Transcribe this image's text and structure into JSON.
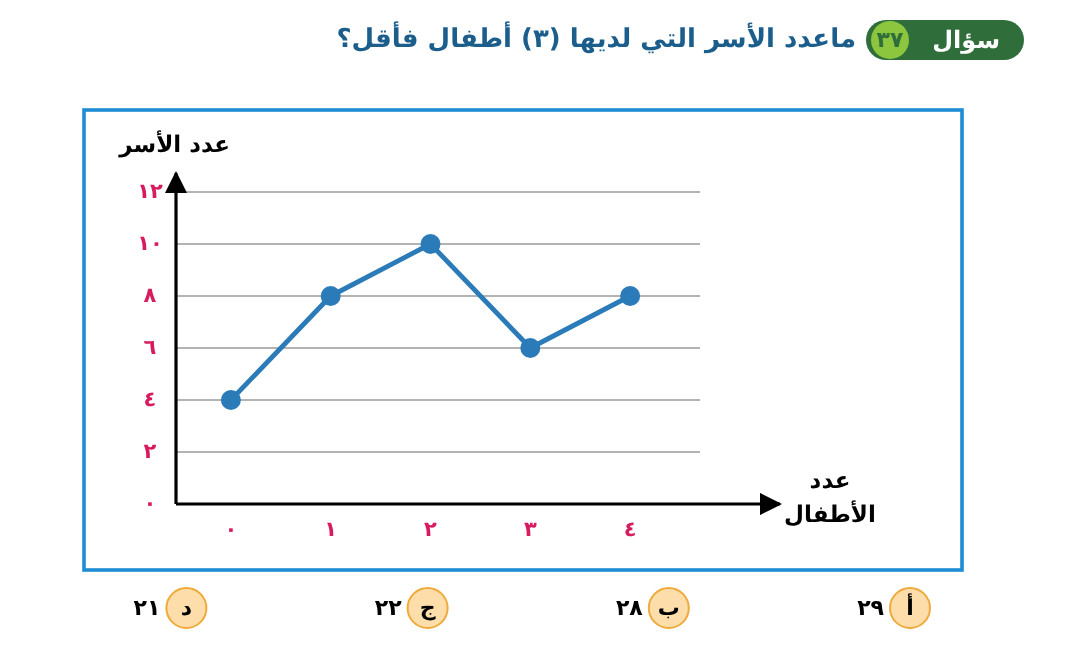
{
  "chart_data": {
    "type": "line",
    "title": "ماعدد الأسر التي لديها (٣) أطفال فأقل؟",
    "xlabel": "عدد الأطفال",
    "ylabel": "عدد الأسر",
    "categories": [
      "٠",
      "١",
      "٢",
      "٣",
      "٤"
    ],
    "values": [
      4,
      8,
      10,
      6,
      8
    ],
    "color": "#2b7bb9",
    "ylim": [
      0,
      12
    ],
    "yticks": [
      {
        "value": 0,
        "label": "٠"
      },
      {
        "value": 2,
        "label": "٢"
      },
      {
        "value": 4,
        "label": "٤"
      },
      {
        "value": 6,
        "label": "٦"
      },
      {
        "value": 8,
        "label": "٨"
      },
      {
        "value": 10,
        "label": "١٠"
      },
      {
        "value": 12,
        "label": "١٢"
      }
    ],
    "grid": "y",
    "marker": "circle",
    "annotations": [
      "سؤال",
      "٣٧",
      "أ",
      "٢٩",
      "ب",
      "٢٨",
      "ج",
      "٢٢",
      "د",
      "٢١"
    ]
  }
}
